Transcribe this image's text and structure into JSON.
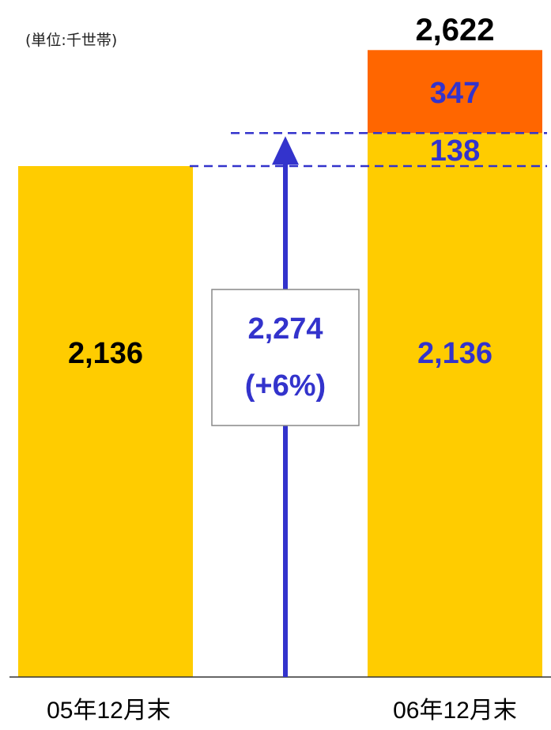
{
  "unit_label": "(単位:千世帯)",
  "colors": {
    "base_bar": "#FFCC00",
    "increase_segment": "#FF6600",
    "accent": "#3333CC",
    "axis": "#333333",
    "total_label": "#000000"
  },
  "chart_data": {
    "type": "bar",
    "stacked": true,
    "categories": [
      "05年12月末",
      "06年12月末"
    ],
    "series": [
      {
        "values": [
          2136,
          2136
        ],
        "labels": [
          "2,136",
          "2,136"
        ]
      },
      {
        "values": [
          0,
          138
        ],
        "labels": [
          "",
          "138"
        ]
      },
      {
        "values": [
          0,
          347
        ],
        "labels": [
          "",
          "347"
        ]
      }
    ],
    "totals": [
      2136,
      2622
    ],
    "total_labels": [
      "",
      "2,622"
    ],
    "ylim": [
      0,
      2622
    ],
    "annotation": {
      "value": 2274,
      "lines": [
        "2,274",
        "(+6%)"
      ],
      "arrow_to": 2274
    },
    "reference_lines": [
      2274,
      2136
    ],
    "grid": false,
    "legend": "none"
  }
}
